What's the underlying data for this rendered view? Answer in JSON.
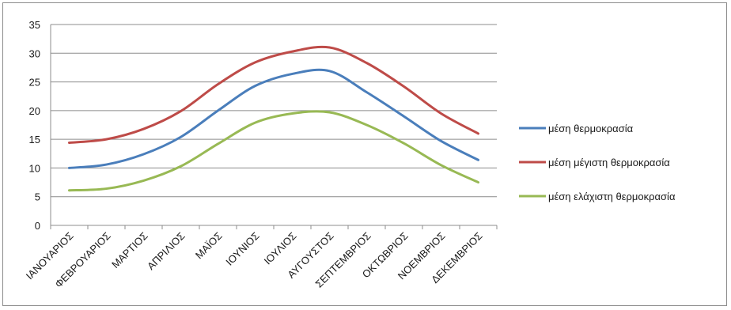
{
  "chart_data": {
    "type": "line",
    "title": "",
    "xlabel": "",
    "ylabel": "",
    "ylim": [
      0,
      35
    ],
    "yticks": [
      0,
      5,
      10,
      15,
      20,
      25,
      30,
      35
    ],
    "grid": "horizontal",
    "legend_position": "right",
    "categories": [
      "ΙΑΝΟΥΑΡΙΟΣ",
      "ΦΕΒΡΟΥΑΡΙΟΣ",
      "ΜΑΡΤΙΟΣ",
      "ΑΠΡΙΛΙΟΣ",
      "ΜΑΪΟΣ",
      "ΙΟΥΝΙΟΣ",
      "ΙΟΥΛΙΟΣ",
      "ΑΥΓΟΥΣΤΟΣ",
      "ΣΕΠΤΕΜΒΡΙΟΣ",
      "ΟΚΤΩΒΡΙΟΣ",
      "ΝΟΕΜΒΡΙΟΣ",
      "ΔΕΚΕΜΒΡΙΟΣ"
    ],
    "series": [
      {
        "name": "μέση θερμοκρασία",
        "color": "#4a7ebb",
        "values": [
          10.0,
          10.6,
          12.4,
          15.4,
          20.0,
          24.3,
          26.4,
          26.9,
          23.2,
          19.0,
          14.7,
          11.4
        ]
      },
      {
        "name": "μέση μέγιστη θερμοκρασία",
        "color": "#be4b48",
        "values": [
          14.4,
          15.0,
          16.8,
          19.9,
          24.6,
          28.4,
          30.3,
          31.0,
          28.3,
          24.2,
          19.5,
          16.0
        ]
      },
      {
        "name": "μέση ελάχιστη θερμοκρασία",
        "color": "#98b954",
        "values": [
          6.1,
          6.4,
          7.8,
          10.3,
          14.2,
          17.9,
          19.5,
          19.7,
          17.5,
          14.3,
          10.5,
          7.5
        ]
      }
    ]
  }
}
